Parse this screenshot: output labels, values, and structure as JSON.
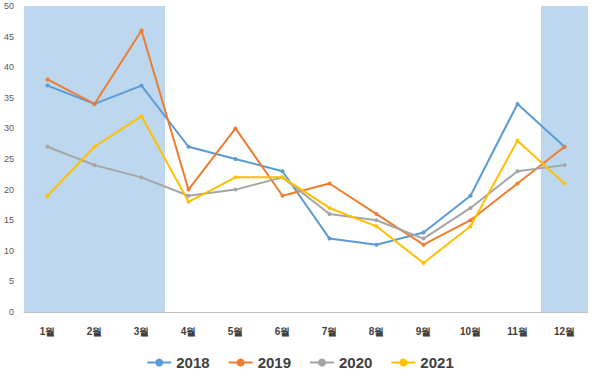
{
  "chart_data": {
    "type": "line",
    "categories": [
      "1월",
      "2월",
      "3월",
      "4월",
      "5월",
      "6월",
      "7월",
      "8월",
      "9월",
      "10월",
      "11월",
      "12월"
    ],
    "series": [
      {
        "name": "2018",
        "color": "#5B9BD5",
        "values": [
          37,
          34,
          37,
          27,
          25,
          23,
          12,
          11,
          13,
          19,
          34,
          27
        ]
      },
      {
        "name": "2019",
        "color": "#ED7D31",
        "values": [
          38,
          34,
          46,
          20,
          30,
          19,
          21,
          16,
          11,
          15,
          21,
          27
        ]
      },
      {
        "name": "2020",
        "color": "#A5A5A5",
        "values": [
          27,
          24,
          22,
          19,
          20,
          22,
          16,
          15,
          12,
          17,
          23,
          24
        ]
      },
      {
        "name": "2021",
        "color": "#FFC000",
        "values": [
          19,
          27,
          32,
          18,
          22,
          22,
          17,
          14,
          8,
          14,
          28,
          21
        ]
      }
    ],
    "highlight": {
      "ranges": [
        [
          "1월",
          "3월"
        ],
        [
          "12월",
          "12월"
        ]
      ],
      "color": "#BDD7EE"
    },
    "ylim": [
      0,
      50
    ],
    "yticks": [
      0,
      5,
      10,
      15,
      20,
      25,
      30,
      35,
      40,
      45,
      50
    ],
    "grid": false,
    "legend": "bottom",
    "marker": "circle",
    "line_style": "solid"
  }
}
